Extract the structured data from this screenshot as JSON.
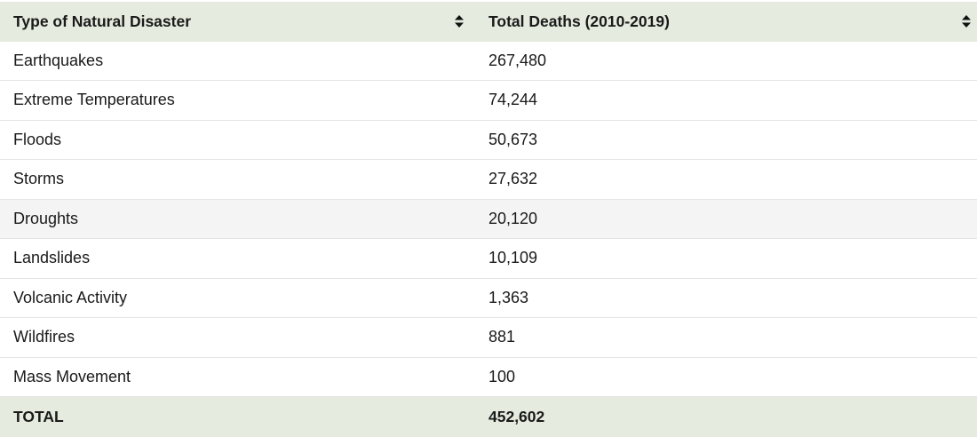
{
  "table": {
    "headers": [
      "Type of Natural Disaster",
      "Total Deaths (2010-2019)"
    ],
    "rows": [
      {
        "type": "Earthquakes",
        "deaths": "267,480"
      },
      {
        "type": "Extreme Temperatures",
        "deaths": "74,244"
      },
      {
        "type": "Floods",
        "deaths": "50,673"
      },
      {
        "type": "Storms",
        "deaths": "27,632"
      },
      {
        "type": "Droughts",
        "deaths": "20,120"
      },
      {
        "type": "Landslides",
        "deaths": "10,109"
      },
      {
        "type": "Volcanic Activity",
        "deaths": "1,363"
      },
      {
        "type": "Wildfires",
        "deaths": "881"
      },
      {
        "type": "Mass Movement",
        "deaths": "100"
      }
    ],
    "total": {
      "label": "TOTAL",
      "value": "452,602"
    }
  },
  "icons": {
    "sort": "sort-icon"
  },
  "colors": {
    "header_bg": "#e5ecdf",
    "alt_row_bg": "#f4f4f4"
  }
}
